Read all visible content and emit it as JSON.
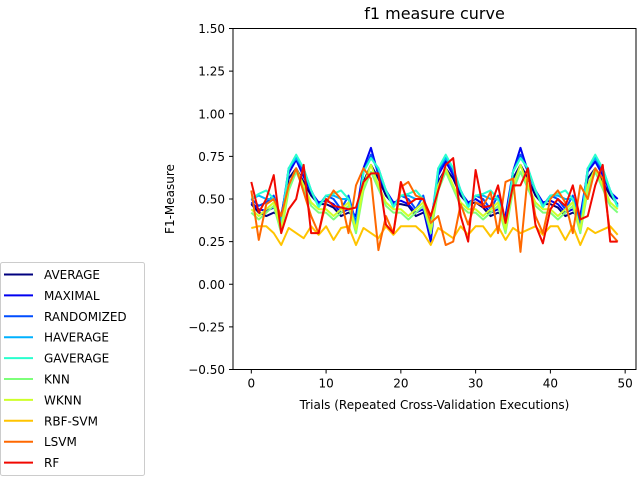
{
  "chart_data": {
    "type": "line",
    "title": "f1 measure curve",
    "xlabel": "Trials (Repeated Cross-Validation Executions)",
    "ylabel": "F1-Measure",
    "xlim": [
      -2.45,
      51.45
    ],
    "ylim": [
      -0.5,
      1.5
    ],
    "xticks": [
      0,
      10,
      20,
      30,
      40,
      50
    ],
    "yticks": [
      -0.5,
      -0.25,
      0.0,
      0.25,
      0.5,
      0.75,
      1.0,
      1.25,
      1.5
    ],
    "ytick_labels": [
      "−0.50",
      "−0.25",
      "0.00",
      "0.25",
      "0.50",
      "0.75",
      "1.00",
      "1.25",
      "1.50"
    ],
    "grid": false,
    "legend_position": "lower-left, outside plot",
    "x": [
      0,
      1,
      2,
      3,
      4,
      5,
      6,
      7,
      8,
      9,
      10,
      11,
      12,
      13,
      14,
      15,
      16,
      17,
      18,
      19,
      20,
      21,
      22,
      23,
      24,
      25,
      26,
      27,
      28,
      29,
      30,
      31,
      32,
      33,
      34,
      35,
      36,
      37,
      38,
      39,
      40,
      41,
      42,
      43,
      44,
      45,
      46,
      47,
      48,
      49
    ],
    "series": [
      {
        "name": "AVERAGE",
        "color": "#00007f",
        "values": [
          0.47,
          0.42,
          0.4,
          0.42,
          0.4,
          0.62,
          0.68,
          0.6,
          0.52,
          0.47,
          0.47,
          0.45,
          0.4,
          0.42,
          0.4,
          0.6,
          0.7,
          0.62,
          0.52,
          0.47,
          0.47,
          0.46,
          0.4,
          0.42,
          0.38,
          0.6,
          0.68,
          0.62,
          0.52,
          0.47,
          0.48,
          0.45,
          0.4,
          0.42,
          0.4,
          0.62,
          0.7,
          0.62,
          0.52,
          0.47,
          0.47,
          0.45,
          0.4,
          0.42,
          0.4,
          0.62,
          0.68,
          0.6,
          0.52,
          0.47
        ]
      },
      {
        "name": "MAXIMAL",
        "color": "#0000f1",
        "values": [
          0.48,
          0.44,
          0.43,
          0.45,
          0.4,
          0.65,
          0.73,
          0.63,
          0.54,
          0.48,
          0.49,
          0.47,
          0.42,
          0.44,
          0.4,
          0.68,
          0.8,
          0.64,
          0.55,
          0.48,
          0.49,
          0.47,
          0.42,
          0.44,
          0.25,
          0.64,
          0.72,
          0.64,
          0.54,
          0.48,
          0.5,
          0.47,
          0.42,
          0.44,
          0.4,
          0.66,
          0.8,
          0.66,
          0.55,
          0.48,
          0.49,
          0.47,
          0.42,
          0.44,
          0.4,
          0.66,
          0.72,
          0.64,
          0.54,
          0.5
        ]
      },
      {
        "name": "RANDOMIZED",
        "color": "#004dff",
        "values": [
          0.5,
          0.46,
          0.48,
          0.52,
          0.38,
          0.68,
          0.74,
          0.66,
          0.55,
          0.46,
          0.52,
          0.5,
          0.44,
          0.52,
          0.36,
          0.66,
          0.76,
          0.66,
          0.55,
          0.46,
          0.52,
          0.5,
          0.44,
          0.52,
          0.34,
          0.66,
          0.74,
          0.66,
          0.55,
          0.46,
          0.52,
          0.5,
          0.44,
          0.52,
          0.36,
          0.66,
          0.76,
          0.66,
          0.55,
          0.46,
          0.52,
          0.5,
          0.44,
          0.52,
          0.36,
          0.68,
          0.74,
          0.66,
          0.55,
          0.46
        ]
      },
      {
        "name": "HAVERAGE",
        "color": "#00b1ff",
        "values": [
          0.5,
          0.52,
          0.5,
          0.5,
          0.36,
          0.68,
          0.74,
          0.68,
          0.55,
          0.46,
          0.52,
          0.52,
          0.5,
          0.5,
          0.34,
          0.66,
          0.74,
          0.68,
          0.55,
          0.46,
          0.52,
          0.52,
          0.5,
          0.5,
          0.34,
          0.68,
          0.74,
          0.68,
          0.55,
          0.46,
          0.52,
          0.52,
          0.5,
          0.5,
          0.34,
          0.66,
          0.74,
          0.68,
          0.55,
          0.46,
          0.52,
          0.52,
          0.5,
          0.5,
          0.32,
          0.68,
          0.74,
          0.68,
          0.55,
          0.46
        ]
      },
      {
        "name": "GAVERAGE",
        "color": "#29ffce",
        "values": [
          0.5,
          0.53,
          0.55,
          0.5,
          0.34,
          0.68,
          0.76,
          0.68,
          0.55,
          0.45,
          0.52,
          0.53,
          0.55,
          0.5,
          0.3,
          0.66,
          0.74,
          0.68,
          0.55,
          0.45,
          0.52,
          0.53,
          0.55,
          0.5,
          0.3,
          0.68,
          0.76,
          0.68,
          0.55,
          0.45,
          0.52,
          0.53,
          0.55,
          0.5,
          0.32,
          0.66,
          0.74,
          0.68,
          0.55,
          0.45,
          0.52,
          0.53,
          0.55,
          0.5,
          0.3,
          0.68,
          0.76,
          0.68,
          0.55,
          0.45
        ]
      },
      {
        "name": "KNN",
        "color": "#7dff7a",
        "values": [
          0.42,
          0.38,
          0.42,
          0.46,
          0.3,
          0.55,
          0.66,
          0.56,
          0.46,
          0.42,
          0.42,
          0.38,
          0.42,
          0.46,
          0.3,
          0.55,
          0.66,
          0.56,
          0.46,
          0.42,
          0.42,
          0.38,
          0.42,
          0.46,
          0.3,
          0.55,
          0.66,
          0.56,
          0.46,
          0.42,
          0.42,
          0.38,
          0.42,
          0.46,
          0.3,
          0.55,
          0.66,
          0.56,
          0.46,
          0.42,
          0.42,
          0.38,
          0.42,
          0.46,
          0.3,
          0.55,
          0.66,
          0.56,
          0.46,
          0.42
        ]
      },
      {
        "name": "WKNN",
        "color": "#ceff29",
        "values": [
          0.44,
          0.4,
          0.44,
          0.48,
          0.32,
          0.58,
          0.68,
          0.58,
          0.48,
          0.44,
          0.44,
          0.4,
          0.44,
          0.48,
          0.32,
          0.58,
          0.7,
          0.58,
          0.48,
          0.44,
          0.44,
          0.4,
          0.44,
          0.48,
          0.32,
          0.58,
          0.68,
          0.58,
          0.48,
          0.44,
          0.44,
          0.4,
          0.44,
          0.48,
          0.32,
          0.58,
          0.7,
          0.58,
          0.48,
          0.44,
          0.44,
          0.4,
          0.44,
          0.48,
          0.32,
          0.58,
          0.68,
          0.58,
          0.48,
          0.44
        ]
      },
      {
        "name": "RBF-SVM",
        "color": "#ffc400",
        "values": [
          0.33,
          0.34,
          0.34,
          0.3,
          0.23,
          0.33,
          0.3,
          0.27,
          0.34,
          0.29,
          0.34,
          0.26,
          0.33,
          0.34,
          0.23,
          0.33,
          0.3,
          0.27,
          0.34,
          0.29,
          0.34,
          0.34,
          0.34,
          0.3,
          0.23,
          0.33,
          0.3,
          0.27,
          0.34,
          0.29,
          0.34,
          0.34,
          0.28,
          0.34,
          0.26,
          0.33,
          0.3,
          0.32,
          0.34,
          0.29,
          0.34,
          0.34,
          0.26,
          0.34,
          0.23,
          0.33,
          0.3,
          0.32,
          0.34,
          0.29
        ]
      },
      {
        "name": "LSVM",
        "color": "#ff6800",
        "values": [
          0.55,
          0.26,
          0.47,
          0.5,
          0.4,
          0.58,
          0.68,
          0.54,
          0.4,
          0.3,
          0.48,
          0.55,
          0.5,
          0.3,
          0.58,
          0.68,
          0.62,
          0.2,
          0.4,
          0.3,
          0.57,
          0.6,
          0.52,
          0.5,
          0.36,
          0.4,
          0.23,
          0.25,
          0.47,
          0.35,
          0.48,
          0.46,
          0.54,
          0.3,
          0.6,
          0.62,
          0.19,
          0.65,
          0.4,
          0.3,
          0.5,
          0.55,
          0.48,
          0.3,
          0.58,
          0.5,
          0.68,
          0.62,
          0.3,
          0.25
        ]
      },
      {
        "name": "RF",
        "color": "#f10800",
        "values": [
          0.6,
          0.42,
          0.5,
          0.64,
          0.3,
          0.44,
          0.5,
          0.7,
          0.3,
          0.3,
          0.5,
          0.46,
          0.45,
          0.44,
          0.45,
          0.6,
          0.65,
          0.65,
          0.35,
          0.3,
          0.6,
          0.47,
          0.5,
          0.5,
          0.4,
          0.55,
          0.7,
          0.74,
          0.4,
          0.25,
          0.67,
          0.45,
          0.46,
          0.58,
          0.36,
          0.58,
          0.58,
          0.68,
          0.35,
          0.24,
          0.44,
          0.5,
          0.46,
          0.58,
          0.38,
          0.4,
          0.58,
          0.7,
          0.25,
          0.25
        ]
      }
    ]
  }
}
